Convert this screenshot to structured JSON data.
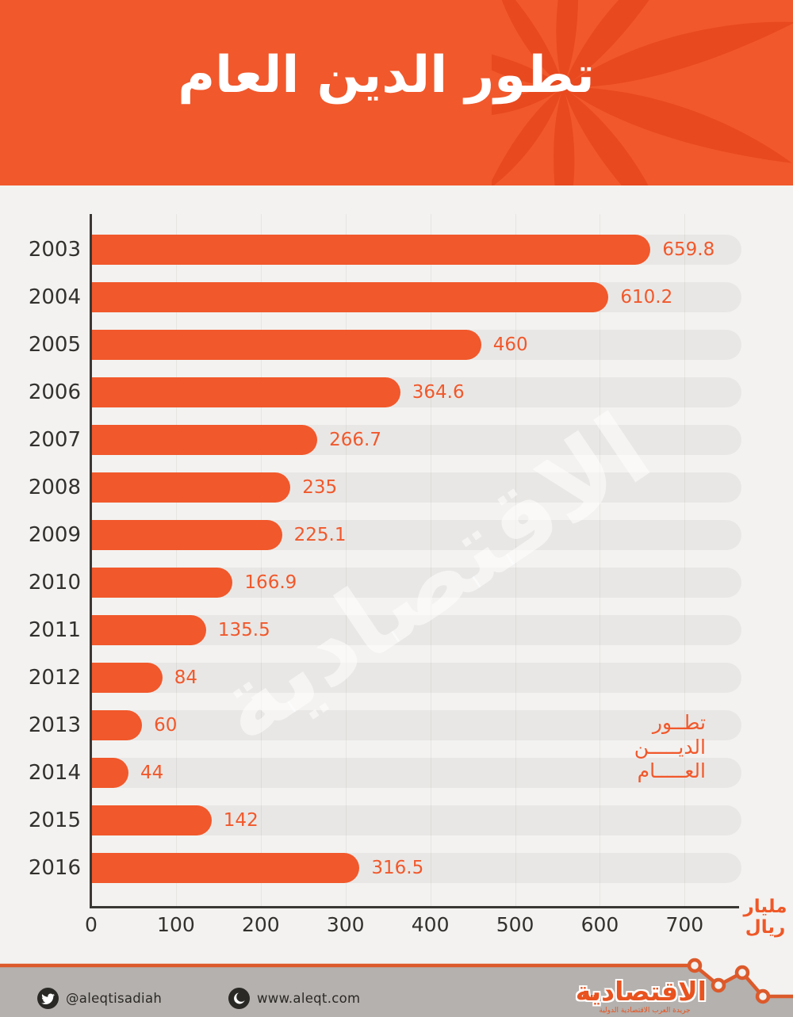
{
  "header": {
    "title": "تطور الدين العام"
  },
  "chart_data": {
    "type": "bar",
    "orientation": "horizontal",
    "title": "تطور الدين العام",
    "categories": [
      "2003",
      "2004",
      "2005",
      "2006",
      "2007",
      "2008",
      "2009",
      "2010",
      "2011",
      "2012",
      "2013",
      "2014",
      "2015",
      "2016"
    ],
    "values": [
      659.8,
      610.2,
      460,
      364.6,
      266.7,
      235,
      225.1,
      166.9,
      135.5,
      84,
      60,
      44,
      142,
      316.5
    ],
    "value_labels": [
      "659.8",
      "610.2",
      "460",
      "364.6",
      "266.7",
      "235",
      "225.1",
      "166.9",
      "135.5",
      "84",
      "60",
      "44",
      "142",
      "316.5"
    ],
    "x_ticks": [
      "0",
      "100",
      "200",
      "300",
      "400",
      "500",
      "600",
      "700"
    ],
    "x_tick_values": [
      0,
      100,
      200,
      300,
      400,
      500,
      600,
      700
    ],
    "xlim": [
      0,
      767
    ],
    "grid": true,
    "legend": "none",
    "unit_label_lines": [
      "مليار",
      "ريال"
    ],
    "annotation_lines": [
      "تطــور",
      "الديـــــن",
      "العـــــام"
    ],
    "bar_color": "#f1582b",
    "track_color": "#e9e7e5"
  },
  "watermark": {
    "text": "الاقتصادية"
  },
  "footer": {
    "twitter_handle": "@aleqtisadiah",
    "website": "www.aleqt.com",
    "logo_text": "الاقتصادية",
    "logo_tagline": "جريدة العرب الاقتصادية الدولية",
    "quote_mark": "””"
  },
  "colors": {
    "header_bg": "#f1582b",
    "swirl": "#e8491f",
    "page_bg": "#f3f2f0",
    "track": "#e9e7e5",
    "bar": "#f1582b",
    "value_text": "#f1582b",
    "text_dark": "#33312e",
    "axis": "#3a3835",
    "footer_bg": "#b4b1ae",
    "footer_line": "#dc5a2b",
    "footer_dark": "#2b2925",
    "logo_orange": "#e8531f"
  }
}
